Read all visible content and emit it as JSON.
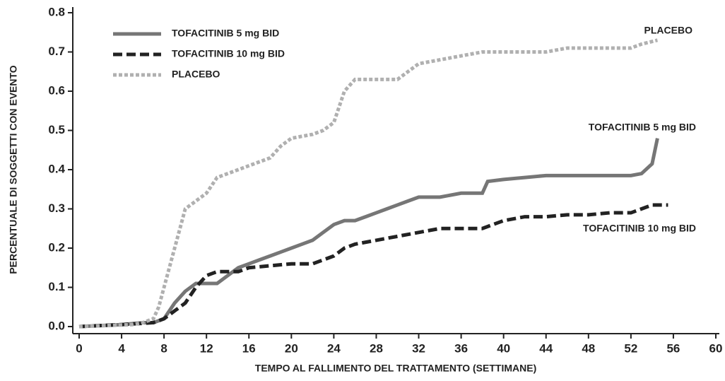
{
  "chart_data": {
    "type": "line",
    "xlabel": "TEMPO AL FALLIMENTO DEL TRATTAMENTO (SETTIMANE)",
    "ylabel": "PERCENTUALE DI SOGGETTI CON EVENTO",
    "xlim": [
      0,
      60
    ],
    "xticks": [
      0,
      4,
      8,
      12,
      16,
      20,
      24,
      28,
      32,
      36,
      40,
      44,
      48,
      52,
      56,
      60
    ],
    "ylim": [
      0,
      0.8
    ],
    "yticks": [
      {
        "value": 0,
        "label": "0.0"
      },
      0.1,
      0.2,
      0.3,
      0.4,
      0.5,
      0.6,
      0.7,
      0.8
    ],
    "legend": "upper left",
    "series": [
      {
        "name": "TOFACITINIB 5 mg BID",
        "color": "#767676",
        "style": "solid",
        "x": [
          0,
          4,
          6,
          7,
          8,
          9,
          10,
          11,
          12,
          13,
          14,
          15,
          16,
          17,
          18,
          19,
          20,
          21,
          22,
          23,
          24,
          25,
          26,
          27,
          28,
          29,
          30,
          31,
          32,
          34,
          36,
          38,
          38.5,
          40,
          42,
          44,
          46,
          48,
          50,
          52,
          53,
          54,
          54.5
        ],
        "values": [
          0,
          0.005,
          0.01,
          0.01,
          0.02,
          0.06,
          0.09,
          0.11,
          0.11,
          0.11,
          0.13,
          0.15,
          0.16,
          0.17,
          0.18,
          0.19,
          0.2,
          0.21,
          0.22,
          0.24,
          0.26,
          0.27,
          0.27,
          0.28,
          0.29,
          0.3,
          0.31,
          0.32,
          0.33,
          0.33,
          0.34,
          0.34,
          0.37,
          0.375,
          0.38,
          0.385,
          0.385,
          0.385,
          0.385,
          0.385,
          0.39,
          0.415,
          0.48
        ]
      },
      {
        "name": "TOFACITINIB 10 mg BID",
        "color": "#222222",
        "style": "dashed",
        "x": [
          0,
          4,
          7,
          8,
          9,
          10,
          10.5,
          11,
          12,
          13,
          14,
          15,
          16,
          18,
          20,
          22,
          23,
          24,
          25,
          26,
          28,
          30,
          32,
          34,
          36,
          38,
          39,
          40,
          42,
          44,
          46,
          48,
          50,
          52,
          53,
          54,
          55.5
        ],
        "values": [
          0,
          0.005,
          0.01,
          0.02,
          0.04,
          0.06,
          0.08,
          0.1,
          0.13,
          0.14,
          0.14,
          0.14,
          0.15,
          0.155,
          0.16,
          0.16,
          0.17,
          0.18,
          0.2,
          0.21,
          0.22,
          0.23,
          0.24,
          0.25,
          0.25,
          0.25,
          0.26,
          0.27,
          0.28,
          0.28,
          0.285,
          0.285,
          0.29,
          0.29,
          0.3,
          0.31,
          0.31
        ]
      },
      {
        "name": "PLACEBO",
        "color": "#b0b0b0",
        "style": "dotted",
        "x": [
          0,
          5,
          6,
          7,
          7.5,
          8,
          8.5,
          9,
          9.5,
          10,
          11,
          12,
          13,
          14,
          16,
          18,
          19,
          20,
          22,
          23,
          24,
          25,
          26,
          28,
          30,
          31,
          32,
          34,
          36,
          38,
          40,
          42,
          44,
          46,
          48,
          50,
          52,
          53,
          54.5
        ],
        "values": [
          0,
          0.005,
          0.01,
          0.02,
          0.05,
          0.1,
          0.15,
          0.2,
          0.25,
          0.3,
          0.32,
          0.34,
          0.38,
          0.39,
          0.41,
          0.43,
          0.46,
          0.48,
          0.49,
          0.5,
          0.52,
          0.6,
          0.63,
          0.63,
          0.63,
          0.65,
          0.67,
          0.68,
          0.69,
          0.7,
          0.7,
          0.7,
          0.7,
          0.71,
          0.71,
          0.71,
          0.71,
          0.72,
          0.73
        ]
      }
    ],
    "annotations": [
      "PLACEBO",
      "TOFACITINIB 5 mg BID",
      "TOFACITINIB 10 mg BID"
    ]
  }
}
